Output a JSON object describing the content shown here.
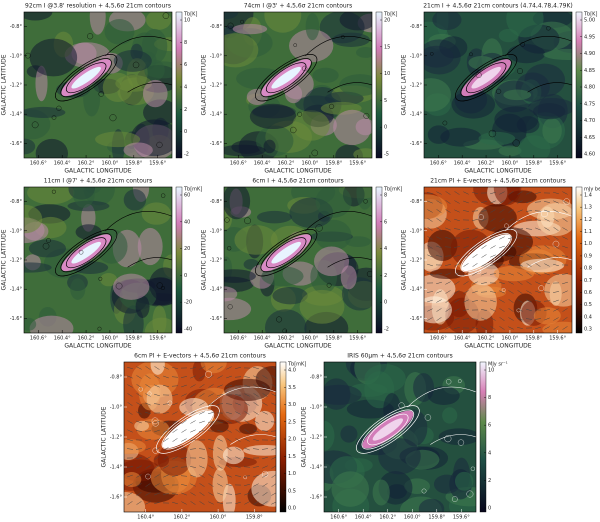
{
  "panels": [
    {
      "title": "92cm I @3.8' resolution + 4,5,6σ 21cm contours",
      "x_label": "GALACTIC LONGITUDE",
      "y_label": "GALACTIC LATITUDE",
      "x_ticks": [
        "160.6°",
        "160.4°",
        "160.2°",
        "160.0°",
        "159.8°",
        "159.6°"
      ],
      "y_ticks": [
        "-0.8°",
        "-1.0°",
        "-1.2°",
        "-1.4°",
        "-1.6°"
      ],
      "colorbar_unit": "Tb[K]",
      "colorbar_ticks": [
        "10",
        "8",
        "6",
        "4",
        "2",
        "0",
        "-2"
      ],
      "colormap": "cubehelix",
      "contour_color": "#000",
      "e_vectors": false
    },
    {
      "title": "74cm I @3' + 4,5,6σ 21cm contours",
      "x_label": "GALACTIC LONGITUDE",
      "y_label": "GALACTIC LATITUDE",
      "x_ticks": [
        "160.6°",
        "160.4°",
        "160.2°",
        "160.0°",
        "159.8°",
        "159.6°"
      ],
      "y_ticks": [
        "-0.8°",
        "-1.0°",
        "-1.2°",
        "-1.4°",
        "-1.6°"
      ],
      "colorbar_unit": "Tb[K]",
      "colorbar_ticks": [
        "20",
        "15",
        "10",
        "5",
        "0",
        "-5"
      ],
      "colormap": "cubehelix",
      "contour_color": "#000",
      "e_vectors": false
    },
    {
      "title": "21cm I + 4,5,6σ 21cm contours (4.74,4.78,4.79K)",
      "x_label": "GALACTIC LONGITUDE",
      "y_label": "GALACTIC LATITUDE",
      "x_ticks": [
        "160.6°",
        "160.4°",
        "160.2°",
        "160.0°",
        "159.8°",
        "159.6°"
      ],
      "y_ticks": [
        "-0.8°",
        "-1.0°",
        "-1.2°",
        "-1.4°",
        "-1.6°"
      ],
      "colorbar_unit": "Tb[K]",
      "colorbar_ticks": [
        "5.00",
        "4.95",
        "4.90",
        "4.85",
        "4.80",
        "4.75",
        "4.70",
        "4.65",
        "4.60"
      ],
      "colormap": "cubehelix-dark",
      "contour_color": "#000",
      "e_vectors": false
    },
    {
      "title": "11cm I @7' + 4,5,6σ 21cm contours",
      "x_label": "GALACTIC LONGITUDE",
      "y_label": "GALACTIC LATITUDE",
      "x_ticks": [
        "160.6°",
        "160.4°",
        "160.2°",
        "160.0°",
        "159.8°",
        "159.6°"
      ],
      "y_ticks": [
        "-0.8°",
        "-1.0°",
        "-1.2°",
        "-1.4°",
        "-1.6°"
      ],
      "colorbar_unit": "Tb[mK]",
      "colorbar_ticks": [
        "60",
        "40",
        "20",
        "0",
        "-20",
        "-40"
      ],
      "colormap": "cubehelix",
      "contour_color": "#000",
      "e_vectors": false
    },
    {
      "title": "6cm I + 4,5,6σ 21cm contours",
      "x_label": "GALACTIC LONGITUDE",
      "y_label": "GALACTIC LATITUDE",
      "x_ticks": [
        "160.6°",
        "160.4°",
        "160.2°",
        "160.0°",
        "159.8°",
        "159.6°"
      ],
      "y_ticks": [
        "-0.8°",
        "-1.0°",
        "-1.2°",
        "-1.4°",
        "-1.6°"
      ],
      "colorbar_unit": "Tb[mK]",
      "colorbar_ticks": [
        "8",
        "6",
        "4",
        "2",
        "0",
        "-2"
      ],
      "colormap": "cubehelix",
      "contour_color": "#000",
      "e_vectors": false
    },
    {
      "title": "21cm PI + E-vectors + 4,5,6σ 21cm contours",
      "x_label": "GALACTIC LONGITUDE",
      "y_label": "GALACTIC LATITUDE",
      "x_ticks": [
        "160.6°",
        "160.4°",
        "160.2°",
        "160.0°",
        "159.8°",
        "159.6°"
      ],
      "y_ticks": [
        "-0.8°",
        "-1.0°",
        "-1.2°",
        "-1.4°",
        "-1.6°"
      ],
      "colorbar_unit": "mJy beam⁻¹",
      "colorbar_ticks": [
        "1.4",
        "1.3",
        "1.2",
        "1.1",
        "1.0",
        "0.9",
        "0.8",
        "0.7",
        "0.6",
        "0.5",
        "0.4",
        "0.3"
      ],
      "colormap": "heat",
      "contour_color": "#fff",
      "e_vectors": true
    },
    {
      "title": "6cm PI + E-vectors + 4,5,6σ 21cm contours",
      "x_label": "GALACTIC LONGITUDE",
      "y_label": "GALACTIC LATITUDE",
      "x_ticks": [
        "160.4°",
        "160.2°",
        "160.0°",
        "159.8°"
      ],
      "y_ticks": [
        "-0.8°",
        "-1.0°",
        "-1.2°",
        "-1.4°",
        "-1.6°"
      ],
      "colorbar_unit": "Tb[mK]",
      "colorbar_ticks": [
        "4.0",
        "3.5",
        "3.0",
        "2.5",
        "2.0",
        "1.5",
        "1.0",
        "0.5",
        "0.0"
      ],
      "colormap": "heat",
      "contour_color": "#fff",
      "e_vectors": true
    },
    {
      "title": "IRIS 60μm + 4,5,6σ 21cm contours",
      "x_label": "GALACTIC LONGITUDE",
      "y_label": "GALACTIC LATITUDE",
      "x_ticks": [
        "160.6°",
        "160.4°",
        "160.2°",
        "160.0°",
        "159.8°",
        "159.6°"
      ],
      "y_ticks": [
        "-0.8°",
        "-1.0°",
        "-1.2°",
        "-1.4°",
        "-1.6°"
      ],
      "colorbar_unit": "MJy sr⁻¹",
      "colorbar_ticks": [
        "10",
        "8",
        "6",
        "4",
        "2",
        "0"
      ],
      "colormap": "cubehelix-dark",
      "contour_color": "#fff",
      "e_vectors": false
    }
  ]
}
